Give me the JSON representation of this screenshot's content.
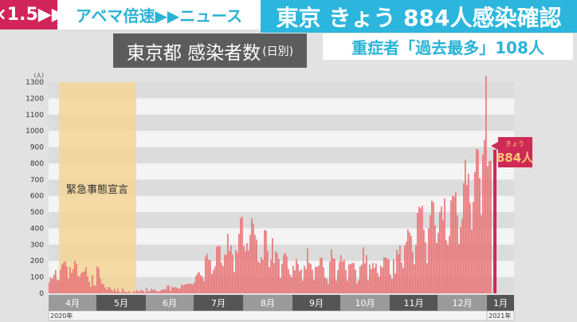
{
  "header": {
    "speed": "×1.5▶▶",
    "brand": "アベマ倍速▶▶ニュース",
    "headline": "東京 きょう 884人感染確認",
    "subtitle": "東京都 感染者数",
    "subtitle_suffix": "(日別)",
    "severe": "重症者「過去最多」108人"
  },
  "colors": {
    "speed_bg": "#d1245a",
    "brand_text": "#2bb3d6",
    "headline_bg": "#2cb6de",
    "bar": "#e8787a",
    "today_bar": "#cf2a55",
    "emergency_band": "#f3d596"
  },
  "chart_data": {
    "type": "bar",
    "ylabel": "(人)",
    "ylim": [
      0,
      1300
    ],
    "yticks": [
      0,
      100,
      200,
      300,
      400,
      500,
      600,
      700,
      800,
      900,
      1000,
      1100,
      1200,
      1300
    ],
    "grid": true,
    "annotation_band": {
      "label": "緊急事態宣言",
      "from_month": "4月",
      "to_month": "5月"
    },
    "callout": {
      "label": "きょう",
      "value": "884人"
    },
    "years": [
      "2020年",
      "2021年"
    ],
    "months": [
      {
        "label": "4月",
        "values": [
          66,
          97,
          89,
          116,
          143,
          83,
          79,
          144,
          178,
          189,
          197,
          166,
          91,
          161,
          127,
          149,
          201,
          181,
          107,
          102,
          123,
          132,
          134,
          161,
          103,
          72,
          39,
          112,
          47,
          46
        ]
      },
      {
        "label": "5月",
        "values": [
          165,
          154,
          91,
          58,
          57,
          36,
          23,
          39,
          36,
          22,
          15,
          28,
          10,
          30,
          9,
          5,
          30,
          11,
          10,
          5,
          14,
          3,
          2,
          14,
          8,
          21,
          11,
          15,
          22,
          14,
          5
        ]
      },
      {
        "label": "6月",
        "values": [
          34,
          13,
          12,
          28,
          20,
          26,
          14,
          13,
          12,
          18,
          22,
          25,
          24,
          47,
          48,
          16,
          41,
          35,
          39,
          35,
          29,
          31,
          55,
          48,
          54,
          57,
          60,
          58,
          60,
          54
        ]
      },
      {
        "label": "7月",
        "values": [
          67,
          107,
          124,
          131,
          111,
          102,
          75,
          224,
          243,
          206,
          206,
          119,
          143,
          165,
          286,
          293,
          290,
          188,
          168,
          237,
          238,
          366,
          260,
          295,
          239,
          131,
          266,
          250,
          367,
          463,
          472
        ]
      },
      {
        "label": "8月",
        "values": [
          292,
          258,
          309,
          263,
          360,
          462,
          429,
          360,
          331,
          197,
          188,
          222,
          206,
          389,
          385,
          260,
          161,
          207,
          339,
          186,
          258,
          247,
          212,
          95,
          182,
          236,
          250,
          226,
          148,
          117,
          100
        ]
      },
      {
        "label": "9月",
        "values": [
          170,
          141,
          211,
          181,
          136,
          146,
          78,
          170,
          149,
          276,
          187,
          181,
          146,
          80,
          163,
          163,
          171,
          218,
          219,
          161,
          97,
          88,
          59,
          195,
          270,
          218,
          212,
          77,
          143,
          194
        ]
      },
      {
        "label": "10月",
        "values": [
          235,
          196,
          207,
          143,
          78,
          178,
          180,
          186,
          187,
          146,
          60,
          78,
          166,
          177,
          284,
          185,
          235,
          78,
          176,
          149,
          186,
          156,
          184,
          124,
          102,
          170,
          158,
          221,
          220,
          215,
          209
        ]
      },
      {
        "label": "11月",
        "values": [
          116,
          87,
          209,
          122,
          270,
          242,
          294,
          189,
          157,
          293,
          317,
          393,
          374,
          352,
          255,
          180,
          298,
          493,
          534,
          522,
          539,
          391,
          314,
          186,
          401,
          481,
          570,
          561,
          418,
          311
        ]
      },
      {
        "label": "12月",
        "values": [
          372,
          500,
          533,
          449,
          584,
          327,
          299,
          352,
          572,
          602,
          595,
          621,
          480,
          305,
          407,
          460,
          678,
          822,
          664,
          736,
          556,
          392,
          563,
          748,
          888,
          884,
          708,
          481,
          856,
          944,
          1337
        ]
      },
      {
        "label": "1月",
        "values": [
          783,
          814,
          816,
          884
        ]
      }
    ]
  }
}
